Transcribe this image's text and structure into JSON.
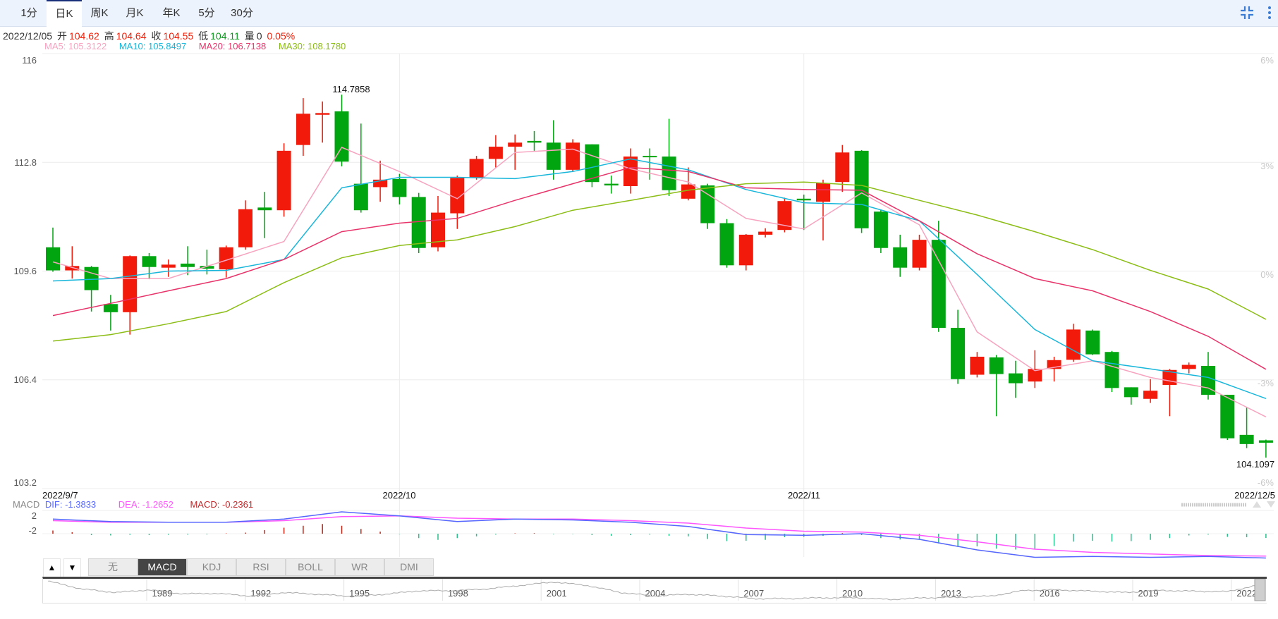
{
  "period_tabs": [
    "1分",
    "日K",
    "周K",
    "月K",
    "年K",
    "5分",
    "30分"
  ],
  "active_period": "日K",
  "info": {
    "date": "2022/12/05",
    "open_label": "开",
    "open": "104.62",
    "high_label": "高",
    "high": "104.64",
    "close_label": "收",
    "close": "104.55",
    "low_label": "低",
    "low": "104.11",
    "volume_label": "量",
    "volume": "0",
    "change_pct": "0.05%"
  },
  "ma_legend": {
    "ma5": "MA5: 105.3122",
    "ma10": "MA10: 105.8497",
    "ma20": "MA20: 106.7138",
    "ma30": "MA30: 108.1780"
  },
  "colors": {
    "up": "#f21a0a",
    "down": "#00a510",
    "ma5": "#f7a3c0",
    "ma10": "#17b6da",
    "ma20": "#e8336a",
    "ma30": "#8cbd16",
    "dif": "#5566ff",
    "dea": "#ff55ff",
    "hist_up": "#c0281a",
    "hist_down": "#2dbf8f"
  },
  "price_axis": {
    "ticks": [
      "116",
      "112.8",
      "109.6",
      "106.4",
      "103.2"
    ],
    "pct_ticks": [
      "6%",
      "3%",
      "0%",
      "-3%",
      "-6%"
    ],
    "min": 103.2,
    "max": 116
  },
  "date_labels": {
    "start": "2022/9/7",
    "oct": "2022/10",
    "nov": "2022/11",
    "end": "2022/12/5"
  },
  "annotations": {
    "max": "114.7858",
    "min": "104.1097"
  },
  "macd_legend": {
    "name": "MACD",
    "dif": "DIF: -1.3833",
    "dea": "DEA: -1.2652",
    "macd": "MACD: -0.2361"
  },
  "macd_axis": {
    "top": "2",
    "bottom": "-2"
  },
  "indicator_tabs": [
    "无",
    "MACD",
    "KDJ",
    "RSI",
    "BOLL",
    "WR",
    "DMI"
  ],
  "active_indicator": "MACD",
  "navigator": {
    "years": [
      "1989",
      "1992",
      "1995",
      "1998",
      "2001",
      "2004",
      "2007",
      "2010",
      "2013",
      "2016",
      "2019",
      "2022"
    ]
  },
  "chart_data": {
    "type": "candlestick",
    "dates_marked": {
      "0": "2022/9/7",
      "18": "2022/10",
      "39": "2022/11",
      "63": "2022/12/5"
    },
    "ohlc": [
      [
        110.3,
        110.88,
        109.58,
        109.62
      ],
      [
        109.62,
        110.33,
        109.38,
        109.75
      ],
      [
        109.72,
        109.75,
        108.41,
        109.04
      ],
      [
        108.63,
        108.9,
        107.85,
        108.39
      ],
      [
        108.39,
        110.06,
        107.73,
        110.04
      ],
      [
        110.04,
        110.13,
        109.36,
        109.72
      ],
      [
        109.7,
        109.94,
        109.43,
        109.79
      ],
      [
        109.82,
        110.33,
        109.48,
        109.72
      ],
      [
        109.75,
        110.23,
        109.5,
        109.67
      ],
      [
        109.65,
        110.35,
        109.41,
        110.3
      ],
      [
        110.3,
        111.68,
        110.23,
        111.42
      ],
      [
        111.47,
        111.93,
        110.57,
        111.39
      ],
      [
        111.39,
        113.36,
        111.2,
        113.14
      ],
      [
        113.31,
        114.69,
        112.99,
        114.23
      ],
      [
        114.2,
        114.59,
        113.38,
        114.25
      ],
      [
        114.3,
        114.79,
        112.68,
        112.82
      ],
      [
        112.17,
        113.94,
        111.32,
        111.39
      ],
      [
        112.07,
        112.85,
        111.64,
        112.29
      ],
      [
        112.31,
        112.46,
        111.56,
        111.78
      ],
      [
        111.78,
        111.9,
        110.13,
        110.28
      ],
      [
        110.3,
        111.81,
        110.18,
        111.32
      ],
      [
        111.3,
        112.41,
        110.84,
        112.34
      ],
      [
        112.36,
        112.99,
        112.29,
        112.9
      ],
      [
        112.9,
        113.6,
        112.65,
        113.26
      ],
      [
        113.26,
        113.62,
        112.58,
        113.38
      ],
      [
        113.43,
        113.72,
        113.14,
        113.38
      ],
      [
        113.38,
        114.04,
        112.29,
        112.58
      ],
      [
        112.58,
        113.48,
        112.53,
        113.38
      ],
      [
        113.33,
        113.33,
        112.07,
        112.22
      ],
      [
        112.17,
        112.41,
        111.88,
        112.12
      ],
      [
        112.1,
        113.21,
        111.88,
        112.97
      ],
      [
        112.99,
        113.21,
        112.29,
        112.95
      ],
      [
        112.97,
        114.08,
        111.81,
        111.98
      ],
      [
        111.73,
        112.65,
        111.68,
        112.15
      ],
      [
        112.12,
        112.17,
        110.84,
        111.01
      ],
      [
        111.01,
        111.13,
        109.7,
        109.77
      ],
      [
        109.77,
        110.69,
        109.62,
        110.67
      ],
      [
        110.67,
        110.86,
        110.59,
        110.76
      ],
      [
        110.81,
        111.76,
        110.74,
        111.66
      ],
      [
        111.73,
        111.85,
        110.81,
        111.68
      ],
      [
        111.64,
        112.29,
        110.5,
        112.19
      ],
      [
        112.22,
        113.31,
        111.93,
        113.09
      ],
      [
        113.14,
        113.16,
        110.72,
        110.86
      ],
      [
        111.35,
        111.4,
        110.13,
        110.28
      ],
      [
        110.3,
        110.67,
        109.43,
        109.7
      ],
      [
        109.7,
        110.67,
        109.62,
        110.52
      ],
      [
        110.52,
        111.08,
        107.81,
        107.93
      ],
      [
        107.93,
        108.46,
        106.28,
        106.42
      ],
      [
        106.55,
        107.22,
        106.47,
        107.08
      ],
      [
        107.06,
        107.13,
        105.33,
        106.57
      ],
      [
        106.59,
        106.96,
        105.87,
        106.3
      ],
      [
        106.35,
        107.27,
        106.16,
        106.72
      ],
      [
        106.72,
        107.08,
        106.35,
        106.98
      ],
      [
        106.99,
        108.05,
        106.93,
        107.88
      ],
      [
        107.85,
        107.88,
        107.13,
        107.15
      ],
      [
        107.22,
        107.25,
        106.04,
        106.16
      ],
      [
        106.18,
        106.18,
        105.67,
        105.89
      ],
      [
        105.84,
        106.42,
        105.72,
        106.08
      ],
      [
        106.25,
        106.72,
        105.33,
        106.69
      ],
      [
        106.72,
        106.91,
        106.59,
        106.84
      ],
      [
        106.81,
        107.22,
        105.82,
        105.96
      ],
      [
        105.96,
        105.96,
        104.63,
        104.68
      ],
      [
        104.78,
        105.58,
        104.39,
        104.51
      ],
      [
        104.62,
        104.64,
        104.11,
        104.55
      ]
    ],
    "ma_sample_step": 3,
    "ma5": [
      109.87,
      109.38,
      109.38,
      109.92,
      110.47,
      113.24,
      112.53,
      111.73,
      113.09,
      113.19,
      112.61,
      112.22,
      111.15,
      110.84,
      111.9,
      110.96,
      107.81,
      106.67,
      106.96,
      106.47,
      106.16,
      105.31
    ],
    "ma10": [
      109.31,
      109.38,
      109.6,
      109.62,
      109.94,
      112.05,
      112.36,
      112.36,
      112.32,
      112.53,
      112.9,
      112.58,
      112.0,
      111.61,
      111.56,
      111.08,
      109.5,
      107.88,
      106.96,
      106.72,
      106.47,
      105.85
    ],
    "ma20": [
      108.29,
      108.65,
      109.02,
      109.38,
      109.94,
      110.76,
      111.01,
      111.15,
      111.68,
      112.17,
      112.65,
      112.53,
      112.05,
      112.0,
      111.98,
      111.08,
      110.11,
      109.38,
      109.02,
      108.41,
      107.68,
      106.71
    ],
    "ma30": [
      107.54,
      107.73,
      108.05,
      108.41,
      109.26,
      109.99,
      110.35,
      110.52,
      110.91,
      111.39,
      111.68,
      111.98,
      112.17,
      112.22,
      112.12,
      111.68,
      111.25,
      110.76,
      110.23,
      109.62,
      109.07,
      108.18
    ],
    "dif": [
      0.83,
      0.69,
      0.65,
      0.65,
      0.83,
      1.24,
      1.01,
      0.69,
      0.83,
      0.78,
      0.65,
      0.41,
      -0.05,
      -0.09,
      0.0,
      -0.32,
      -0.92,
      -1.34,
      -1.29,
      -1.34,
      -1.29,
      -1.38
    ],
    "dea": [
      0.74,
      0.65,
      0.65,
      0.65,
      0.74,
      0.97,
      1.01,
      0.88,
      0.83,
      0.83,
      0.74,
      0.6,
      0.32,
      0.14,
      0.09,
      -0.09,
      -0.46,
      -0.88,
      -1.06,
      -1.15,
      -1.24,
      -1.27
    ],
    "macd_hist": [
      0.18,
      0.08,
      -0.08,
      -0.1,
      -0.06,
      -0.08,
      -0.06,
      -0.05,
      -0.04,
      0.02,
      0.06,
      0.2,
      0.34,
      0.45,
      0.55,
      0.45,
      0.27,
      0.12,
      -0.02,
      -0.25,
      -0.35,
      -0.25,
      -0.15,
      -0.05,
      0.02,
      0.03,
      -0.03,
      -0.02,
      -0.08,
      -0.12,
      -0.08,
      -0.05,
      -0.12,
      -0.15,
      -0.3,
      -0.42,
      -0.4,
      -0.35,
      -0.2,
      -0.18,
      -0.12,
      0.03,
      -0.08,
      -0.25,
      -0.33,
      -0.35,
      -0.55,
      -0.75,
      -0.72,
      -0.85,
      -0.9,
      -0.88,
      -0.7,
      -0.45,
      -0.4,
      -0.45,
      -0.42,
      -0.35,
      -0.25,
      -0.1,
      -0.05,
      -0.18,
      -0.2,
      -0.24
    ],
    "overview_years": [
      1986,
      2022.9
    ],
    "overview_values": [
      118,
      100,
      92,
      98,
      89,
      90,
      84,
      92,
      88,
      83,
      88,
      96,
      96,
      100,
      108,
      116,
      108,
      92,
      84,
      88,
      84,
      78,
      78,
      80,
      80,
      76,
      80,
      81,
      84,
      97,
      98,
      95,
      92,
      97,
      95,
      94,
      110
    ]
  }
}
